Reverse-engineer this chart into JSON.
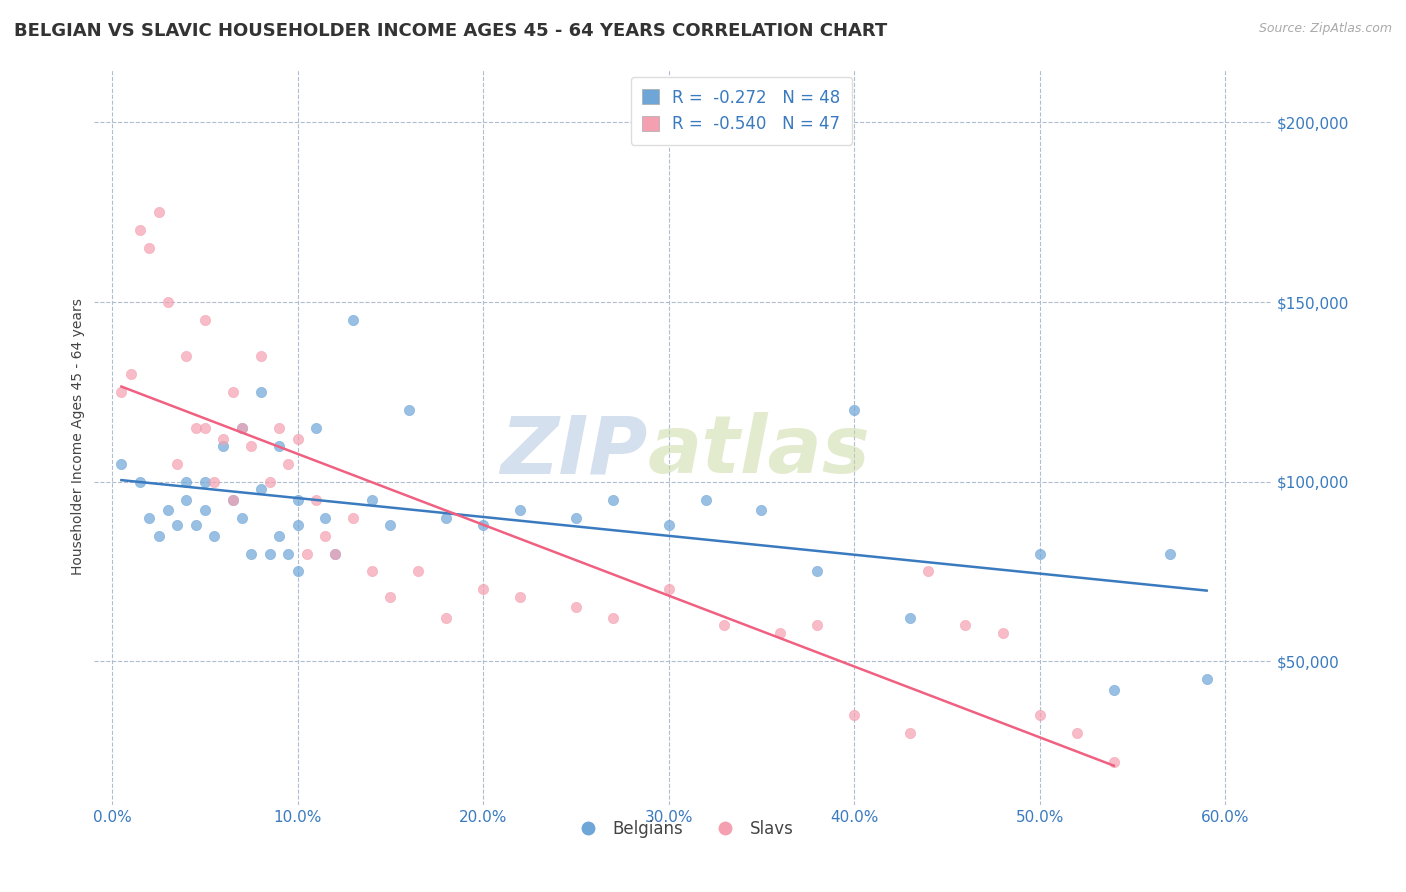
{
  "title": "BELGIAN VS SLAVIC HOUSEHOLDER INCOME AGES 45 - 64 YEARS CORRELATION CHART",
  "source_text": "Source: ZipAtlas.com",
  "ylabel": "Householder Income Ages 45 - 64 years",
  "xlabel_ticks": [
    "0.0%",
    "10.0%",
    "20.0%",
    "30.0%",
    "40.0%",
    "50.0%",
    "60.0%"
  ],
  "xlabel_vals": [
    0.0,
    0.1,
    0.2,
    0.3,
    0.4,
    0.5,
    0.6
  ],
  "ytick_labels": [
    "$200,000",
    "$150,000",
    "$100,000",
    "$50,000"
  ],
  "ytick_vals": [
    200000,
    150000,
    100000,
    50000
  ],
  "xlim": [
    -0.01,
    0.625
  ],
  "ylim": [
    10000,
    215000
  ],
  "belgian_color": "#6ea6d8",
  "slavic_color": "#f4a0b0",
  "belgian_line_color": "#3a7abf",
  "slavic_line_color": "#f06080",
  "legend_r_belgian": "R =  -0.272",
  "legend_n_belgian": "N = 48",
  "legend_r_slavic": "R =  -0.540",
  "legend_n_slavic": "N = 47",
  "watermark_zip": "ZIP",
  "watermark_atlas": "atlas",
  "title_fontsize": 13,
  "axis_label_fontsize": 10,
  "tick_fontsize": 11,
  "legend_fontsize": 12,
  "belgian_x": [
    0.005,
    0.015,
    0.02,
    0.025,
    0.03,
    0.035,
    0.04,
    0.04,
    0.045,
    0.05,
    0.05,
    0.055,
    0.06,
    0.065,
    0.07,
    0.07,
    0.075,
    0.08,
    0.08,
    0.085,
    0.09,
    0.09,
    0.095,
    0.1,
    0.1,
    0.1,
    0.11,
    0.115,
    0.12,
    0.13,
    0.14,
    0.15,
    0.16,
    0.18,
    0.2,
    0.22,
    0.25,
    0.27,
    0.3,
    0.32,
    0.35,
    0.38,
    0.4,
    0.43,
    0.5,
    0.54,
    0.57,
    0.59
  ],
  "belgian_y": [
    105000,
    100000,
    90000,
    85000,
    92000,
    88000,
    100000,
    95000,
    88000,
    100000,
    92000,
    85000,
    110000,
    95000,
    115000,
    90000,
    80000,
    125000,
    98000,
    80000,
    110000,
    85000,
    80000,
    95000,
    88000,
    75000,
    115000,
    90000,
    80000,
    145000,
    95000,
    88000,
    120000,
    90000,
    88000,
    92000,
    90000,
    95000,
    88000,
    95000,
    92000,
    75000,
    120000,
    62000,
    80000,
    42000,
    80000,
    45000
  ],
  "slavic_x": [
    0.005,
    0.01,
    0.015,
    0.02,
    0.025,
    0.03,
    0.035,
    0.04,
    0.045,
    0.05,
    0.05,
    0.055,
    0.06,
    0.065,
    0.065,
    0.07,
    0.075,
    0.08,
    0.085,
    0.09,
    0.095,
    0.1,
    0.105,
    0.11,
    0.115,
    0.12,
    0.13,
    0.14,
    0.15,
    0.165,
    0.18,
    0.2,
    0.22,
    0.25,
    0.27,
    0.3,
    0.33,
    0.36,
    0.38,
    0.4,
    0.43,
    0.44,
    0.46,
    0.48,
    0.5,
    0.52,
    0.54
  ],
  "slavic_y": [
    125000,
    130000,
    170000,
    165000,
    175000,
    150000,
    105000,
    135000,
    115000,
    145000,
    115000,
    100000,
    112000,
    125000,
    95000,
    115000,
    110000,
    135000,
    100000,
    115000,
    105000,
    112000,
    80000,
    95000,
    85000,
    80000,
    90000,
    75000,
    68000,
    75000,
    62000,
    70000,
    68000,
    65000,
    62000,
    70000,
    60000,
    58000,
    60000,
    35000,
    30000,
    75000,
    60000,
    58000,
    35000,
    30000,
    22000
  ]
}
